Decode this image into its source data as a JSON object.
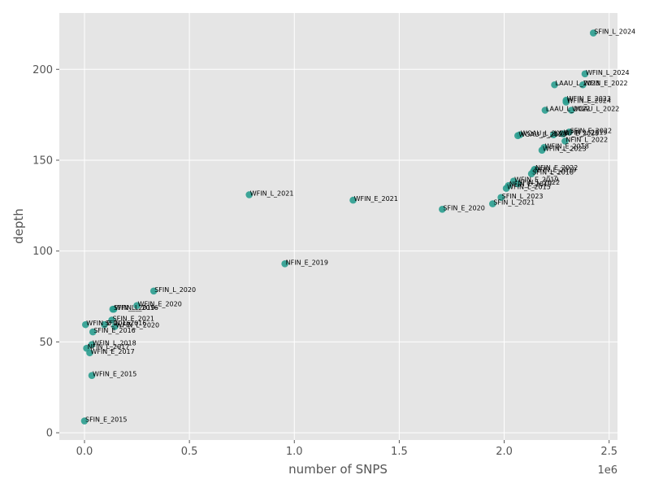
{
  "chart_data": {
    "type": "scatter",
    "xlabel": "number of SNPS",
    "ylabel": "depth",
    "x_offset_text": "1e6",
    "xlim": [
      -0.12,
      2.54
    ],
    "ylim": [
      -4,
      231
    ],
    "x_ticks": [
      0.0,
      0.5,
      1.0,
      1.5,
      2.0,
      2.5
    ],
    "x_tick_labels": [
      "0.0",
      "0.5",
      "1.0",
      "1.5",
      "2.0",
      "2.5"
    ],
    "y_ticks": [
      0,
      50,
      100,
      150,
      200
    ],
    "y_tick_labels": [
      "0",
      "50",
      "100",
      "150",
      "200"
    ],
    "grid": true,
    "marker_color": "#2a9d8f",
    "background_color": "#e5e5e5",
    "points": [
      {
        "label": "SFIN_L_2024",
        "x": 2.425,
        "y": 220
      },
      {
        "label": "WFIN_L_2024",
        "x": 2.385,
        "y": 197.5
      },
      {
        "label": "LAAU_L_2023",
        "x": 2.24,
        "y": 191.5
      },
      {
        "label": "WFIN_E_2022",
        "x": 2.375,
        "y": 191.5
      },
      {
        "label": "WFIN_E_2023",
        "x": 2.295,
        "y": 183
      },
      {
        "label": "WFIN_E_2024",
        "x": 2.295,
        "y": 182
      },
      {
        "label": "LAAU_L_2022",
        "x": 2.195,
        "y": 177.5
      },
      {
        "label": "WOAU_L_2022",
        "x": 2.32,
        "y": 177.5
      },
      {
        "label": "SFIN_E_2022",
        "x": 2.31,
        "y": 165.5
      },
      {
        "label": "WOAU_L_2023",
        "x": 2.075,
        "y": 164
      },
      {
        "label": "WOAU_E_2023",
        "x": 2.065,
        "y": 163.5
      },
      {
        "label": "LAAU_E_2023",
        "x": 2.235,
        "y": 164
      },
      {
        "label": "WFIN_L_2019",
        "x": 2.28,
        "y": 164.5
      },
      {
        "label": "NFIN_L_2022",
        "x": 2.29,
        "y": 160.5
      },
      {
        "label": "WFIN_E_2018",
        "x": 2.19,
        "y": 157
      },
      {
        "label": "WFIN_L_2023",
        "x": 2.18,
        "y": 155.5
      },
      {
        "label": "NFIN_E_2022",
        "x": 2.145,
        "y": 145
      },
      {
        "label": "NFIN_L_2019",
        "x": 2.14,
        "y": 144
      },
      {
        "label": "SFIN_L_2018",
        "x": 2.13,
        "y": 142.5
      },
      {
        "label": "WFIN_E_2019",
        "x": 2.045,
        "y": 138.5
      },
      {
        "label": "SFIN_L_2022",
        "x": 2.065,
        "y": 137
      },
      {
        "label": "NFIN_E_2019",
        "x": 2.02,
        "y": 136
      },
      {
        "label": "WFIN_L_2015",
        "x": 2.01,
        "y": 134.5
      },
      {
        "label": "SFIN_L_2023",
        "x": 1.985,
        "y": 129.5
      },
      {
        "label": "SFIN_L_2021",
        "x": 1.945,
        "y": 126
      },
      {
        "label": "SFIN_E_2020",
        "x": 1.705,
        "y": 123
      },
      {
        "label": "WFIN_E_2021",
        "x": 1.28,
        "y": 128
      },
      {
        "label": "WFIN_L_2021",
        "x": 0.785,
        "y": 131
      },
      {
        "label": "NFIN_E_2019",
        "x": 0.955,
        "y": 93
      },
      {
        "label": "SFIN_L_2020",
        "x": 0.33,
        "y": 78
      },
      {
        "label": "WFIN_E_2020",
        "x": 0.25,
        "y": 70
      },
      {
        "label": "SFIN_L_2019",
        "x": 0.135,
        "y": 68
      },
      {
        "label": "WFIN_L_2016",
        "x": 0.14,
        "y": 68
      },
      {
        "label": "SFIN_E_2021",
        "x": 0.13,
        "y": 62
      },
      {
        "label": "WFIN_E_2016",
        "x": 0.005,
        "y": 59.5
      },
      {
        "label": "SFIN_L_2016",
        "x": 0.095,
        "y": 59.5
      },
      {
        "label": "WFIN_L_2020",
        "x": 0.145,
        "y": 58.5
      },
      {
        "label": "SFIN_E_2016",
        "x": 0.04,
        "y": 55.5
      },
      {
        "label": "WFIN_L_2018",
        "x": 0.035,
        "y": 48.5
      },
      {
        "label": "NFIN_L_2017",
        "x": 0.01,
        "y": 46.5
      },
      {
        "label": "WFIN_E_2017",
        "x": 0.025,
        "y": 44
      },
      {
        "label": "WFIN_E_2015",
        "x": 0.035,
        "y": 31.5
      },
      {
        "label": "SFIN_E_2015",
        "x": 0.0,
        "y": 6.5
      }
    ]
  }
}
